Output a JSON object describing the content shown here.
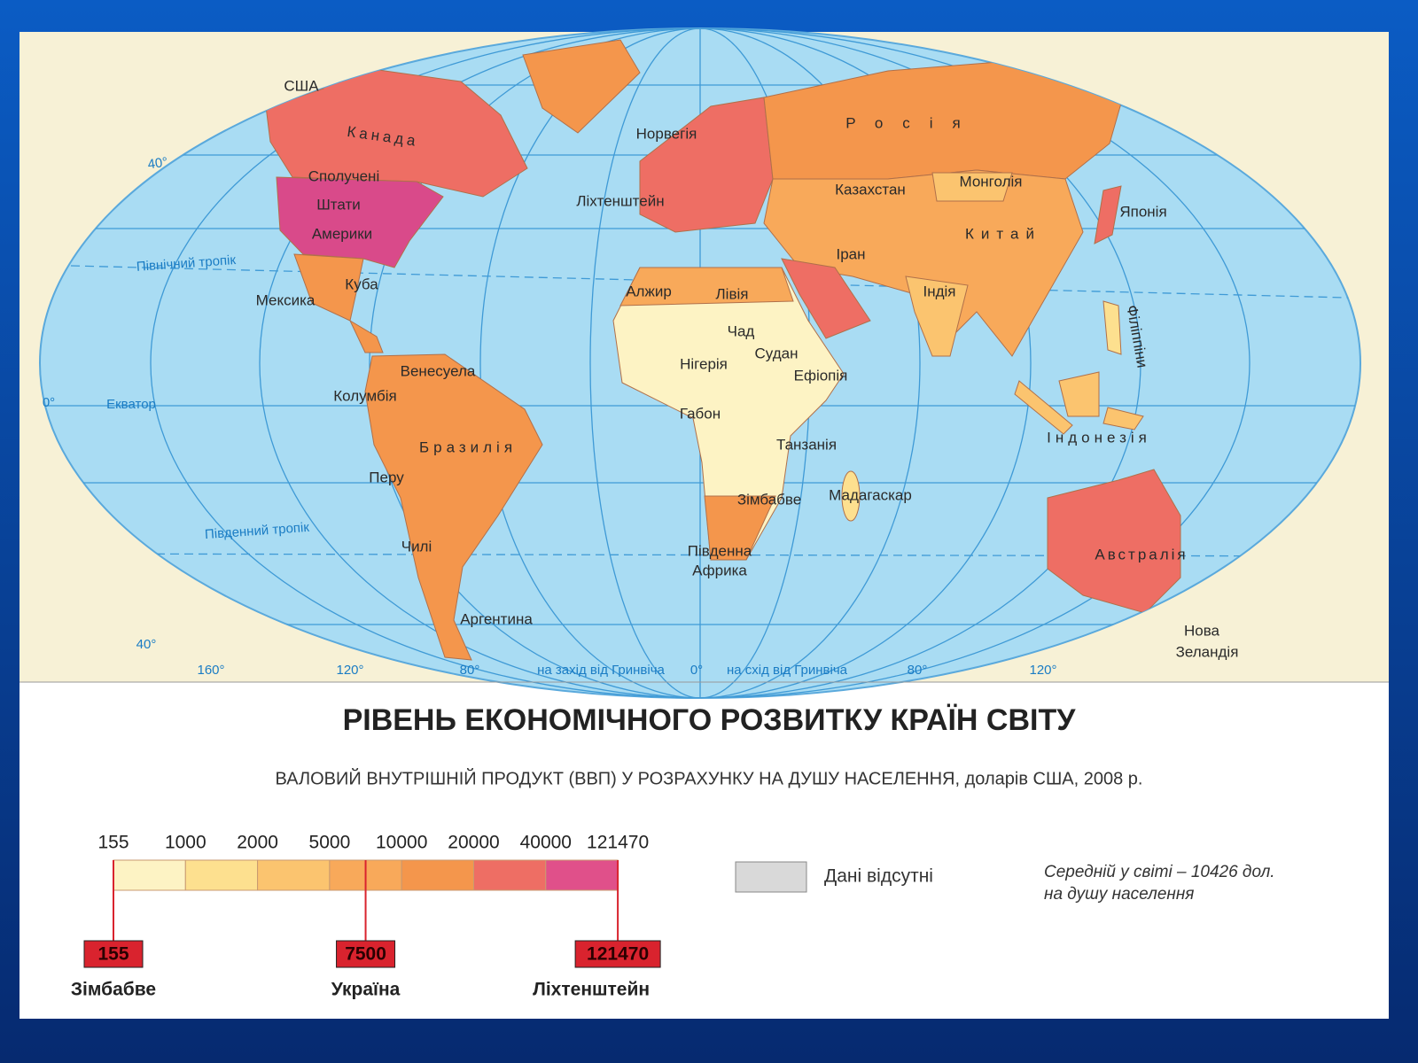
{
  "map": {
    "labels": [
      "США",
      "Канада",
      "Сполучені",
      "Штати",
      "Америки",
      "Мексика",
      "Куба",
      "Венесуела",
      "Колумбія",
      "Бразилія",
      "Перу",
      "Чилі",
      "Аргентина",
      "Норвегія",
      "Ліхтенштейн",
      "Росія",
      "Казахстан",
      "Монголія",
      "Японія",
      "Китай",
      "Іран",
      "Індія",
      "Філіппіни",
      "Алжир",
      "Лівія",
      "Чад",
      "Судан",
      "Нігерія",
      "Ефіопія",
      "Габон",
      "Танзанія",
      "Індонезія",
      "Мадагаскар",
      "Зімбабве",
      "Південна",
      "Африка",
      "Австралія",
      "Нова",
      "Зеландія"
    ],
    "grid_labels": [
      "40°",
      "Північний тропік",
      "0°",
      "Екватор",
      "Південний тропік",
      "40°",
      "160°",
      "120°",
      "80°",
      "на захід від Гринвіча",
      "0°",
      "на схід від Гринвіча",
      "80°",
      "120°"
    ]
  },
  "title": "РІВЕНЬ ЕКОНОМІЧНОГО РОЗВИТКУ КРАЇН СВІТУ",
  "subtitle": "ВАЛОВИЙ ВНУТРІШНІЙ ПРОДУКТ (ВВП) У РОЗРАХУНКУ НА ДУШУ НАСЕЛЕННЯ, доларів США, 2008 р.",
  "legend": {
    "ticks": [
      155,
      1000,
      2000,
      5000,
      10000,
      20000,
      40000,
      121470
    ],
    "colors": [
      "#fdf3c4",
      "#fde08f",
      "#fbc46f",
      "#f8a95a",
      "#f4964c",
      "#ee6e64",
      "#e0508a"
    ],
    "no_data_color": "#d9d9d9",
    "no_data": "Дані відсутні",
    "note": [
      "Середній у світі – 10426 дол.",
      "на душу населення"
    ]
  },
  "markers": [
    {
      "value": 155,
      "country": "Зімбабве"
    },
    {
      "value": 7500,
      "country": "Україна"
    },
    {
      "value": 121470,
      "country": "Ліхтенштейн"
    }
  ]
}
